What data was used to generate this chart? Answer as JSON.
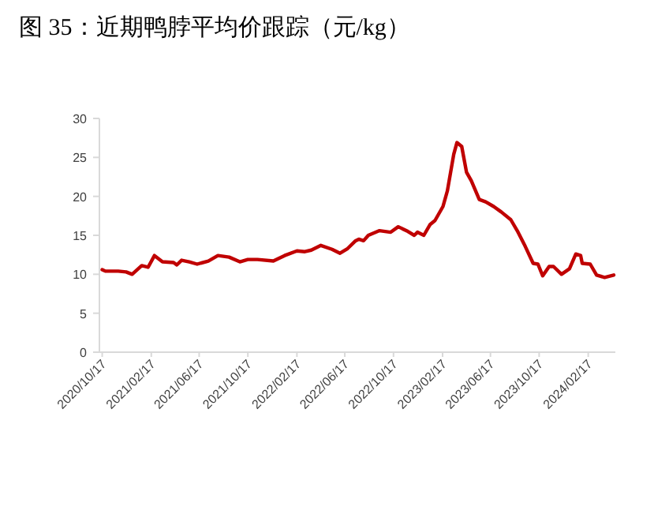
{
  "chart_data": {
    "type": "line",
    "title": "图 35：近期鸭脖平均价跟踪（元/kg）",
    "x": [
      "2020-10-17",
      "2020-10-25",
      "2020-11-26",
      "2020-12-16",
      "2020-12-31",
      "2021-01-24",
      "2021-02-09",
      "2021-02-25",
      "2021-03-17",
      "2021-04-14",
      "2021-04-22",
      "2021-05-04",
      "2021-05-23",
      "2021-06-12",
      "2021-07-10",
      "2021-08-03",
      "2021-08-31",
      "2021-09-27",
      "2021-10-17",
      "2021-11-10",
      "2021-12-20",
      "2022-01-17",
      "2022-02-17",
      "2022-03-09",
      "2022-03-25",
      "2022-04-18",
      "2022-05-16",
      "2022-06-05",
      "2022-06-24",
      "2022-07-14",
      "2022-07-22",
      "2022-08-03",
      "2022-08-15",
      "2022-09-12",
      "2022-10-10",
      "2022-10-29",
      "2022-11-22",
      "2022-12-08",
      "2022-12-16",
      "2023-01-01",
      "2023-01-17",
      "2023-01-29",
      "2023-02-18",
      "2023-03-01",
      "2023-03-17",
      "2023-03-25",
      "2023-04-06",
      "2023-04-18",
      "2023-04-30",
      "2023-05-20",
      "2023-06-05",
      "2023-06-25",
      "2023-07-14",
      "2023-08-07",
      "2023-08-23",
      "2023-09-12",
      "2023-10-02",
      "2023-10-14",
      "2023-10-26",
      "2023-11-11",
      "2023-11-22",
      "2023-12-12",
      "2024-01-01",
      "2024-01-17",
      "2024-01-29",
      "2024-02-02",
      "2024-02-22",
      "2024-03-09",
      "2024-03-29",
      "2024-04-21"
    ],
    "series": [
      {
        "color": "#c00000",
        "values": [
          10.6,
          10.4,
          10.4,
          10.3,
          10.0,
          11.1,
          10.9,
          12.4,
          11.6,
          11.5,
          11.2,
          11.8,
          11.6,
          11.3,
          11.7,
          12.4,
          12.2,
          11.6,
          11.9,
          11.9,
          11.7,
          12.4,
          13.0,
          12.9,
          13.1,
          13.7,
          13.2,
          12.7,
          13.3,
          14.3,
          14.5,
          14.3,
          15.0,
          15.6,
          15.4,
          16.1,
          15.5,
          15.0,
          15.4,
          15.0,
          16.4,
          16.9,
          18.7,
          20.7,
          25.4,
          26.9,
          26.4,
          23.1,
          22.0,
          19.6,
          19.3,
          18.7,
          18.0,
          17.0,
          15.6,
          13.6,
          11.4,
          11.3,
          9.8,
          11.0,
          11.0,
          10.0,
          10.7,
          12.6,
          12.4,
          11.4,
          11.3,
          9.9,
          9.6,
          9.9
        ]
      }
    ],
    "xlim": [
      "2020-10-10",
      "2024-04-25"
    ],
    "xticks": [
      {
        "value": "2020-10-17",
        "label": "2020/10/17"
      },
      {
        "value": "2021-02-17",
        "label": "2021/02/17"
      },
      {
        "value": "2021-06-17",
        "label": "2021/06/17"
      },
      {
        "value": "2021-10-17",
        "label": "2021/10/17"
      },
      {
        "value": "2022-02-17",
        "label": "2022/02/17"
      },
      {
        "value": "2022-06-17",
        "label": "2022/06/17"
      },
      {
        "value": "2022-10-17",
        "label": "2022/10/17"
      },
      {
        "value": "2023-02-17",
        "label": "2023/02/17"
      },
      {
        "value": "2023-06-17",
        "label": "2023/06/17"
      },
      {
        "value": "2023-10-17",
        "label": "2023/10/17"
      },
      {
        "value": "2024-02-17",
        "label": "2024/02/17"
      }
    ],
    "ylim": [
      0,
      30
    ],
    "yticks": [
      0,
      5,
      10,
      15,
      20,
      25,
      30
    ],
    "grid": false,
    "marker": "none",
    "line_style": "solid"
  }
}
